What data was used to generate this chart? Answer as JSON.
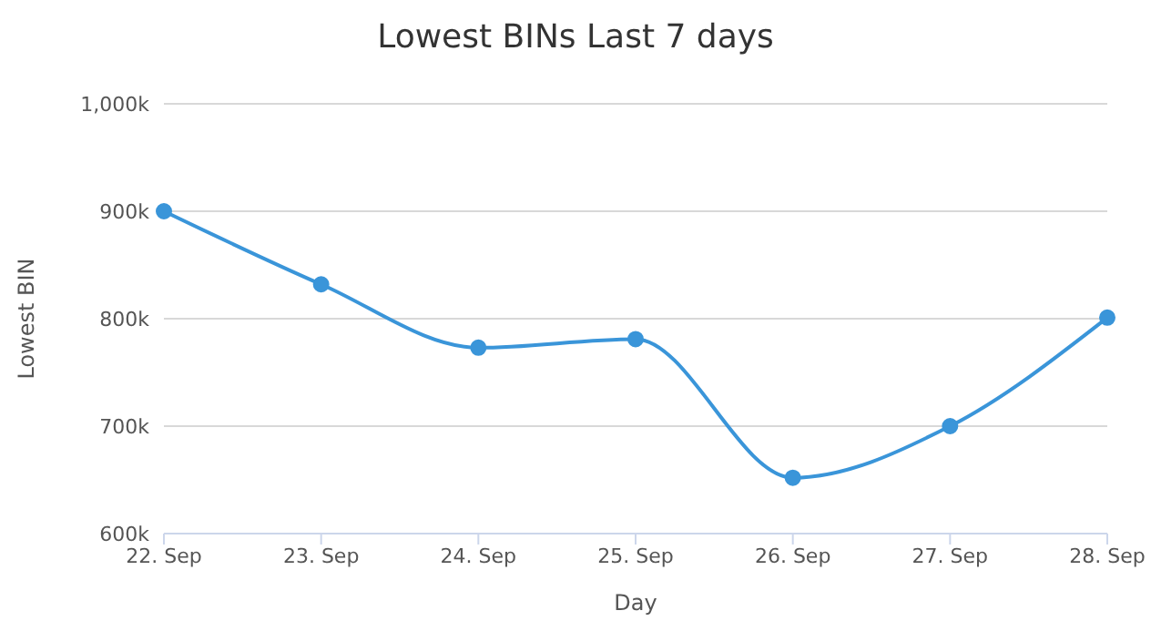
{
  "chart_data": {
    "type": "line",
    "title": "Lowest BINs Last 7 days",
    "xlabel": "Day",
    "ylabel": "Lowest BIN",
    "categories": [
      "22. Sep",
      "23. Sep",
      "24. Sep",
      "25. Sep",
      "26. Sep",
      "27. Sep",
      "28. Sep"
    ],
    "series": [
      {
        "color": "#3a95d9",
        "values": [
          900000,
          832000,
          773000,
          781000,
          652000,
          700000,
          801000
        ]
      }
    ],
    "ylim": [
      600000,
      1000000
    ],
    "yticks": [
      {
        "value": 600000,
        "label": "600k"
      },
      {
        "value": 700000,
        "label": "700k"
      },
      {
        "value": 800000,
        "label": "800k"
      },
      {
        "value": 900000,
        "label": "900k"
      },
      {
        "value": 1000000,
        "label": "1,000k"
      }
    ],
    "grid": "y",
    "marker": "circle",
    "line_style": "solid"
  }
}
